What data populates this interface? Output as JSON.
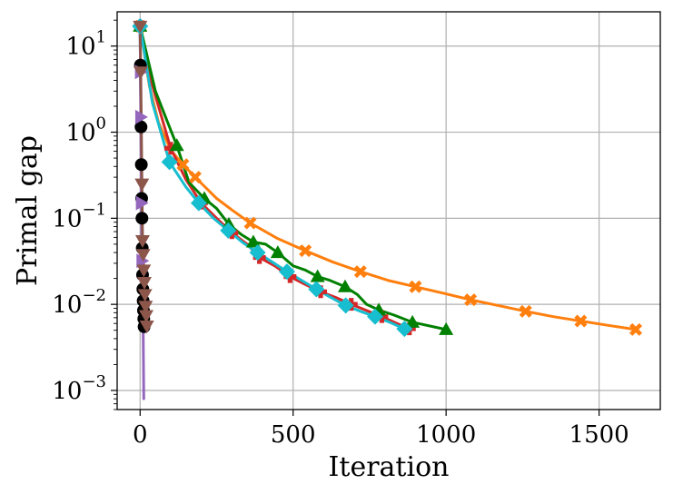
{
  "chart_data": {
    "type": "line",
    "title": "",
    "xlabel": "Iteration",
    "ylabel": "Primal gap",
    "xlim": [
      -75,
      1700
    ],
    "ylim": [
      0.0006,
      25
    ],
    "yscale": "log",
    "grid": true,
    "xticks": [
      0,
      500,
      1000,
      1500
    ],
    "xtick_labels": [
      "0",
      "500",
      "1000",
      "1500"
    ],
    "yticks": [
      0.001,
      0.01,
      0.1,
      1,
      10
    ],
    "ytick_labels": [
      {
        "base": "10",
        "exp": "−3"
      },
      {
        "base": "10",
        "exp": "−2"
      },
      {
        "base": "10",
        "exp": "−1"
      },
      {
        "base": "10",
        "exp": "0"
      },
      {
        "base": "10",
        "exp": "1"
      }
    ],
    "series": [
      {
        "color": "#ff7f0e",
        "marker": "X",
        "x": [
          0,
          30,
          60,
          100,
          140,
          180,
          250,
          300,
          360,
          450,
          540,
          630,
          720,
          810,
          900,
          990,
          1080,
          1170,
          1260,
          1350,
          1440,
          1530,
          1620
        ],
        "y": [
          17,
          3.5,
          1.3,
          0.62,
          0.42,
          0.3,
          0.17,
          0.125,
          0.088,
          0.058,
          0.042,
          0.031,
          0.024,
          0.019,
          0.016,
          0.0135,
          0.0113,
          0.0097,
          0.0083,
          0.0072,
          0.0064,
          0.0057,
          0.0051
        ],
        "marker_every": [
          0,
          4,
          5,
          8,
          10,
          12,
          14,
          16,
          18,
          20,
          22
        ]
      },
      {
        "color": "#d62728",
        "marker": "P",
        "x": [
          0,
          40,
          100,
          150,
          200,
          250,
          300,
          350,
          390,
          440,
          490,
          540,
          590,
          640,
          690,
          740,
          790,
          840,
          880
        ],
        "y": [
          17,
          3.5,
          0.65,
          0.28,
          0.15,
          0.1,
          0.068,
          0.05,
          0.035,
          0.028,
          0.021,
          0.017,
          0.014,
          0.012,
          0.01,
          0.0085,
          0.0072,
          0.006,
          0.0052
        ],
        "marker_every": [
          0,
          2,
          4,
          6,
          8,
          10,
          12,
          14,
          16,
          18
        ]
      },
      {
        "color": "#008000",
        "marker": "^",
        "x": [
          0,
          50,
          90,
          120,
          160,
          210,
          250,
          290,
          330,
          370,
          410,
          450,
          500,
          540,
          580,
          620,
          670,
          710,
          740,
          780,
          830,
          890,
          1000
        ],
        "y": [
          17,
          3,
          1.3,
          0.7,
          0.26,
          0.17,
          0.13,
          0.085,
          0.065,
          0.053,
          0.05,
          0.04,
          0.028,
          0.025,
          0.021,
          0.019,
          0.016,
          0.013,
          0.01,
          0.0086,
          0.0075,
          0.0062,
          0.0051
        ],
        "marker_every": [
          0,
          3,
          5,
          7,
          9,
          11,
          14,
          16,
          19,
          21,
          22
        ]
      },
      {
        "color": "#17becf",
        "marker": "D",
        "x": [
          0,
          40,
          96,
          150,
          192,
          240,
          288,
          336,
          384,
          432,
          480,
          528,
          576,
          624,
          672,
          720,
          768,
          816,
          864
        ],
        "y": [
          17,
          2.2,
          0.45,
          0.23,
          0.15,
          0.1,
          0.072,
          0.052,
          0.04,
          0.031,
          0.024,
          0.019,
          0.015,
          0.012,
          0.0097,
          0.0083,
          0.0072,
          0.0062,
          0.0052
        ],
        "marker_every": [
          0,
          2,
          4,
          6,
          8,
          10,
          12,
          14,
          16,
          18
        ]
      },
      {
        "color": "#000000",
        "marker": "o",
        "x": [
          0,
          1,
          2,
          3,
          4,
          5,
          6,
          7,
          8,
          9,
          10,
          11,
          12,
          13
        ],
        "y": [
          17,
          6,
          2.8,
          1.15,
          0.42,
          0.17,
          0.1,
          0.045,
          0.022,
          0.015,
          0.011,
          0.0085,
          0.0068,
          0.0055
        ],
        "marker_every": [
          1,
          3,
          4,
          5,
          6,
          7,
          8,
          9,
          10,
          11,
          12,
          13
        ]
      },
      {
        "color": "#9467bd",
        "marker": ">",
        "x": [
          0,
          1,
          2,
          3,
          4,
          5,
          6,
          7,
          8,
          9,
          10,
          11,
          12
        ],
        "y": [
          17,
          5,
          1.5,
          0.5,
          0.15,
          0.07,
          0.032,
          0.02,
          0.014,
          0.009,
          0.005,
          0.002,
          0.0008
        ],
        "marker_every": [
          1,
          2,
          4,
          6
        ]
      },
      {
        "color": "#8c564b",
        "marker": "v",
        "x": [
          0,
          2,
          4,
          6,
          8,
          10,
          12,
          14,
          16,
          18,
          20,
          22
        ],
        "y": [
          17,
          5,
          1.1,
          0.25,
          0.055,
          0.038,
          0.025,
          0.018,
          0.013,
          0.0095,
          0.0074,
          0.0056
        ],
        "marker_every": [
          0,
          1,
          3,
          4,
          5,
          6,
          7,
          8,
          9,
          10,
          11
        ]
      }
    ]
  }
}
